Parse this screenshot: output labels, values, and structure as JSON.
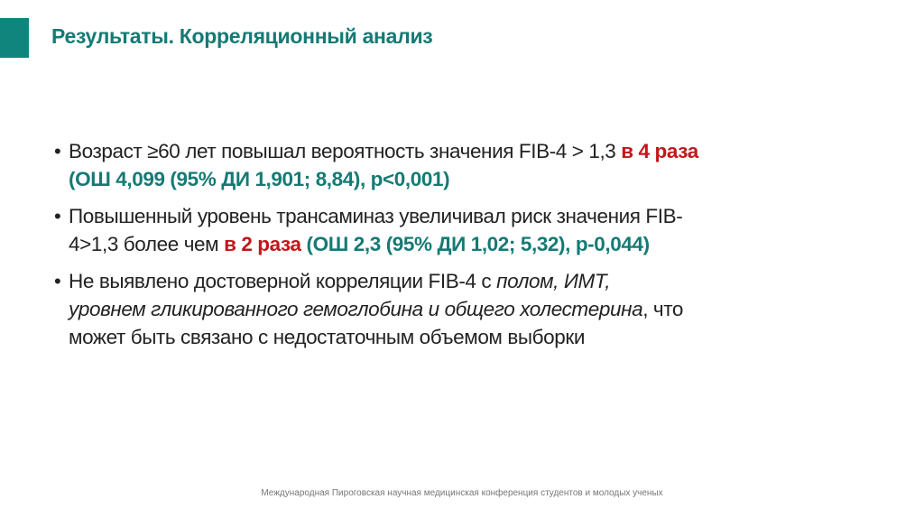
{
  "slide": {
    "title": "Результаты. Корреляционный анализ",
    "accent_color": "#0f857e",
    "highlight_red": "#c0161c",
    "highlight_teal": "#157a74",
    "bullets": [
      {
        "l1a": "Возраст ≥60 лет повышал вероятность значения FIB-4 > 1,3 ",
        "l1b": "в 4 раза",
        "l2": "(ОШ 4,099 (95% ДИ 1,901; 8,84), p<0,001)"
      },
      {
        "l1": "Повышенный уровень трансаминаз увеличивал риск значения FIB-",
        "l2a": "4>1,3 более чем ",
        "l2b": "в 2 раза",
        "l2c": " (ОШ 2,3 (95% ДИ 1,02; 5,32), p-0,044)"
      },
      {
        "l1a": "Не выявлено достоверной корреляции FIB-4 с ",
        "l1b": "полом, ИМТ,",
        "l2a": "уровнем гликированного гемоглобина и общего холестерина",
        "l2b": ", что",
        "l3": "может быть связано с недостаточным объемом выборки"
      }
    ],
    "footer": "Международная Пироговская научная медицинская конференция студентов и молодых ученых"
  }
}
